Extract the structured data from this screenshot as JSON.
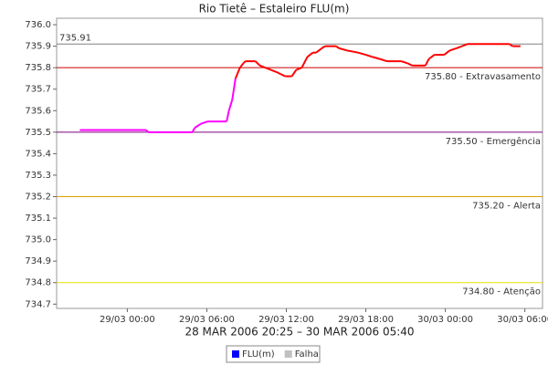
{
  "chart_data": {
    "type": "line",
    "title": "Rio Tietê – Estaleiro FLU(m)",
    "xlabel": "28 MAR 2006 20:25 – 30 MAR 2006 05:40",
    "xlim": [
      "2006-03-28T18:40",
      "2006-03-30T07:20"
    ],
    "xticks": [
      {
        "value": "2006-03-29T00:00",
        "label": "29/03 00:00"
      },
      {
        "value": "2006-03-29T06:00",
        "label": "29/03 06:00"
      },
      {
        "value": "2006-03-29T12:00",
        "label": "29/03 12:00"
      },
      {
        "value": "2006-03-29T18:00",
        "label": "29/03 18:00"
      },
      {
        "value": "2006-03-30T00:00",
        "label": "30/03 00:00"
      },
      {
        "value": "2006-03-30T06:00",
        "label": "30/03 06:00"
      }
    ],
    "ylim": [
      734.68,
      736.03
    ],
    "yticks": [
      734.7,
      734.8,
      734.9,
      {
        "value": 735.0,
        "label": "735.0"
      },
      735.1,
      735.2,
      735.3,
      735.4,
      735.5,
      735.6,
      735.7,
      735.8,
      735.9,
      {
        "value": 736.0,
        "label": "736.0"
      }
    ],
    "x": [
      "2006-03-28T20:25",
      "2006-03-29T01:25",
      "2006-03-29T01:35",
      "2006-03-29T04:55",
      "2006-03-29T05:05",
      "2006-03-29T05:35",
      "2006-03-29T06:05",
      "2006-03-29T07:30",
      "2006-03-29T07:40",
      "2006-03-29T07:55",
      "2006-03-29T08:10",
      "2006-03-29T08:30",
      "2006-03-29T08:45",
      "2006-03-29T08:55",
      "2006-03-29T09:40",
      "2006-03-29T10:00",
      "2006-03-29T10:25",
      "2006-03-29T10:50",
      "2006-03-29T11:15",
      "2006-03-29T11:35",
      "2006-03-29T11:55",
      "2006-03-29T12:25",
      "2006-03-29T12:45",
      "2006-03-29T13:10",
      "2006-03-29T13:35",
      "2006-03-29T14:00",
      "2006-03-29T14:15",
      "2006-03-29T14:40",
      "2006-03-29T14:55",
      "2006-03-29T15:45",
      "2006-03-29T16:00",
      "2006-03-29T16:35",
      "2006-03-29T17:25",
      "2006-03-29T18:00",
      "2006-03-29T18:30",
      "2006-03-29T19:05",
      "2006-03-29T19:35",
      "2006-03-29T20:40",
      "2006-03-29T21:10",
      "2006-03-29T21:30",
      "2006-03-29T22:30",
      "2006-03-29T22:45",
      "2006-03-29T23:10",
      "2006-03-29T23:55",
      "2006-03-30T00:20",
      "2006-03-30T00:50",
      "2006-03-30T01:15",
      "2006-03-30T01:40",
      "2006-03-30T04:50",
      "2006-03-30T05:05",
      "2006-03-30T05:40"
    ],
    "series": [
      {
        "values": [
          735.51,
          735.51,
          735.5,
          735.5,
          735.52,
          735.54,
          735.55,
          735.55,
          735.6,
          735.65,
          735.75,
          735.8,
          735.82,
          735.83,
          735.83,
          735.81,
          735.8,
          735.79,
          735.78,
          735.77,
          735.76,
          735.76,
          735.79,
          735.8,
          735.85,
          735.87,
          735.87,
          735.89,
          735.9,
          735.9,
          735.89,
          735.88,
          735.87,
          735.86,
          735.85,
          735.84,
          735.83,
          735.83,
          735.82,
          735.81,
          735.81,
          735.84,
          735.86,
          735.86,
          735.88,
          735.89,
          735.9,
          735.91,
          735.91,
          735.9,
          735.9
        ],
        "color": "#ff00ff",
        "color2": "#ff0000",
        "color2_from": "2006-03-29T08:30"
      }
    ],
    "thresholds": [
      {
        "value": 735.91,
        "label": "735.91",
        "color": "#808080",
        "side": "left"
      },
      {
        "value": 735.8,
        "label": "735.80 - Extravasamento",
        "color": "#cc0000",
        "side": "right"
      },
      {
        "value": 735.5,
        "label": "735.50 - Emergência",
        "color": "#800080",
        "side": "right"
      },
      {
        "value": 735.2,
        "label": "735.20 - Alerta",
        "color": "#e0a000",
        "side": "right"
      },
      {
        "value": 734.8,
        "label": "734.80 - Atenção",
        "color": "#e8e000",
        "side": "right"
      }
    ],
    "legend": [
      {
        "name": "FLU(m)",
        "color": "#0000ff"
      },
      {
        "name": "Falha",
        "color": "#c0c0c0"
      }
    ]
  }
}
